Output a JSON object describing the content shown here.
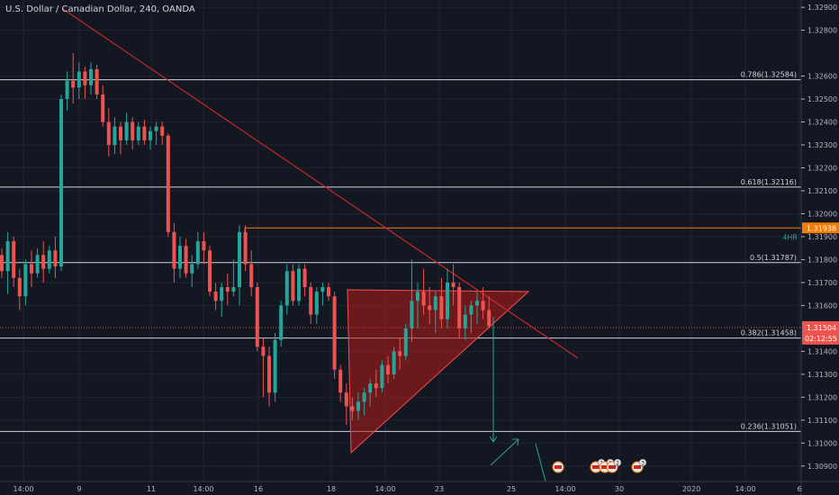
{
  "header": {
    "title": "U.S. Dollar / Canadian Dollar, 240, OANDA"
  },
  "colors": {
    "background": "#131722",
    "grid": "#1f2433",
    "up": "#26a69a",
    "down": "#ef5350",
    "fib_line": "#d1d4dc",
    "resistance": "#f57c00",
    "trendline": "#c62828",
    "triangle_fill": "#b71c1c",
    "projection": "#26a69a",
    "axis_text": "#b2b5be"
  },
  "chart_data": {
    "type": "candlestick",
    "y_range": [
      1.3086,
      1.3292
    ],
    "price_ticks": [
      "1.32900",
      "1.32800",
      "1.32600",
      "1.32500",
      "1.32400",
      "1.32300",
      "1.32200",
      "1.32100",
      "1.32000",
      "1.31900",
      "1.31800",
      "1.31700",
      "1.31600",
      "1.31400",
      "1.31300",
      "1.31200",
      "1.31100",
      "1.31000",
      "1.30900"
    ],
    "time_ticks": [
      "14:00",
      "9",
      "11",
      "14:00",
      "16",
      "18",
      "14:00",
      "23",
      "25",
      "14:00",
      "30",
      "2020",
      "14:00",
      "6"
    ],
    "horizontal_levels": [
      {
        "label": "0.786(1.32584)",
        "value": 1.32584,
        "kind": "fib"
      },
      {
        "label": "0.618(1.32116)",
        "value": 1.32116,
        "kind": "fib"
      },
      {
        "label": "0.5(1.31787)",
        "value": 1.31787,
        "kind": "fib"
      },
      {
        "label": "0.382(1.31458)",
        "value": 1.31458,
        "kind": "fib"
      },
      {
        "label": "0.236(1.31051)",
        "value": 1.31051,
        "kind": "fib"
      }
    ],
    "resistance": {
      "value": 1.31938,
      "price_label": "1.31938",
      "note": "4HR"
    },
    "last_price": {
      "value": 1.31504,
      "price_label": "1.31504",
      "countdown": "02:12:55"
    },
    "candles": [
      [
        1.3182,
        1.3185,
        1.3172,
        1.3175
      ],
      [
        1.3175,
        1.3192,
        1.3165,
        1.3188
      ],
      [
        1.3188,
        1.319,
        1.3168,
        1.3172
      ],
      [
        1.3172,
        1.3176,
        1.3158,
        1.3164
      ],
      [
        1.3164,
        1.318,
        1.316,
        1.3178
      ],
      [
        1.3178,
        1.3184,
        1.3168,
        1.3174
      ],
      [
        1.3174,
        1.3185,
        1.3172,
        1.3182
      ],
      [
        1.3182,
        1.3188,
        1.317,
        1.3176
      ],
      [
        1.3176,
        1.3186,
        1.3174,
        1.3184
      ],
      [
        1.3184,
        1.319,
        1.3172,
        1.3177
      ],
      [
        1.3177,
        1.3252,
        1.3175,
        1.325
      ],
      [
        1.325,
        1.3262,
        1.3245,
        1.3258
      ],
      [
        1.3258,
        1.327,
        1.3248,
        1.3255
      ],
      [
        1.3255,
        1.3266,
        1.325,
        1.3262
      ],
      [
        1.3262,
        1.3264,
        1.325,
        1.3256
      ],
      [
        1.3256,
        1.3266,
        1.3252,
        1.3263
      ],
      [
        1.3263,
        1.3265,
        1.325,
        1.3252
      ],
      [
        1.3252,
        1.3256,
        1.3238,
        1.324
      ],
      [
        1.324,
        1.3246,
        1.3225,
        1.323
      ],
      [
        1.323,
        1.3242,
        1.3226,
        1.3238
      ],
      [
        1.3238,
        1.324,
        1.3226,
        1.3232
      ],
      [
        1.3232,
        1.3244,
        1.323,
        1.324
      ],
      [
        1.324,
        1.3242,
        1.3228,
        1.3232
      ],
      [
        1.3232,
        1.324,
        1.323,
        1.3238
      ],
      [
        1.3238,
        1.3241,
        1.323,
        1.3232
      ],
      [
        1.3232,
        1.3238,
        1.3228,
        1.3236
      ],
      [
        1.3236,
        1.324,
        1.323,
        1.3238
      ],
      [
        1.3238,
        1.324,
        1.323,
        1.3234
      ],
      [
        1.3234,
        1.3235,
        1.319,
        1.3192
      ],
      [
        1.3192,
        1.3196,
        1.317,
        1.3176
      ],
      [
        1.3176,
        1.319,
        1.3172,
        1.3186
      ],
      [
        1.3186,
        1.3189,
        1.3172,
        1.3174
      ],
      [
        1.3174,
        1.3182,
        1.3168,
        1.3178
      ],
      [
        1.3178,
        1.3192,
        1.3176,
        1.3188
      ],
      [
        1.3188,
        1.3192,
        1.3178,
        1.3184
      ],
      [
        1.3184,
        1.3186,
        1.3164,
        1.3166
      ],
      [
        1.3166,
        1.317,
        1.3158,
        1.3162
      ],
      [
        1.3162,
        1.317,
        1.3155,
        1.3168
      ],
      [
        1.3168,
        1.3174,
        1.316,
        1.3166
      ],
      [
        1.3166,
        1.318,
        1.3164,
        1.3168
      ],
      [
        1.3168,
        1.3195,
        1.316,
        1.3192
      ],
      [
        1.3192,
        1.3195,
        1.3175,
        1.3178
      ],
      [
        1.3178,
        1.3184,
        1.3164,
        1.3168
      ],
      [
        1.3168,
        1.317,
        1.314,
        1.3142
      ],
      [
        1.3142,
        1.3146,
        1.312,
        1.3138
      ],
      [
        1.3138,
        1.3142,
        1.3116,
        1.3122
      ],
      [
        1.3122,
        1.3148,
        1.3118,
        1.3145
      ],
      [
        1.3145,
        1.3162,
        1.3142,
        1.316
      ],
      [
        1.316,
        1.3178,
        1.3156,
        1.3175
      ],
      [
        1.3175,
        1.3178,
        1.316,
        1.3162
      ],
      [
        1.3162,
        1.3178,
        1.316,
        1.3176
      ],
      [
        1.3176,
        1.3178,
        1.3164,
        1.3168
      ],
      [
        1.3168,
        1.317,
        1.3152,
        1.3156
      ],
      [
        1.3156,
        1.3168,
        1.3152,
        1.3166
      ],
      [
        1.3166,
        1.317,
        1.316,
        1.3168
      ],
      [
        1.3168,
        1.317,
        1.3162,
        1.3164
      ],
      [
        1.3164,
        1.3166,
        1.3128,
        1.3132
      ],
      [
        1.3132,
        1.3134,
        1.3118,
        1.3122
      ],
      [
        1.3122,
        1.3126,
        1.3108,
        1.3116
      ],
      [
        1.3116,
        1.312,
        1.311,
        1.3114
      ],
      [
        1.3114,
        1.3122,
        1.311,
        1.3118
      ],
      [
        1.3118,
        1.3124,
        1.3112,
        1.3122
      ],
      [
        1.3122,
        1.3128,
        1.3116,
        1.3126
      ],
      [
        1.3126,
        1.3132,
        1.312,
        1.3124
      ],
      [
        1.3124,
        1.3136,
        1.3122,
        1.3134
      ],
      [
        1.3134,
        1.3138,
        1.3126,
        1.313
      ],
      [
        1.313,
        1.3142,
        1.3128,
        1.314
      ],
      [
        1.314,
        1.3146,
        1.3132,
        1.3138
      ],
      [
        1.3138,
        1.3152,
        1.3136,
        1.315
      ],
      [
        1.315,
        1.318,
        1.3144,
        1.3162
      ],
      [
        1.3162,
        1.317,
        1.315,
        1.3166
      ],
      [
        1.3166,
        1.3176,
        1.3156,
        1.316
      ],
      [
        1.316,
        1.3168,
        1.3152,
        1.3158
      ],
      [
        1.3158,
        1.3166,
        1.3148,
        1.3164
      ],
      [
        1.3164,
        1.3172,
        1.315,
        1.3154
      ],
      [
        1.3154,
        1.3176,
        1.315,
        1.317
      ],
      [
        1.317,
        1.3178,
        1.316,
        1.3168
      ],
      [
        1.3168,
        1.317,
        1.3146,
        1.315
      ],
      [
        1.315,
        1.316,
        1.3145,
        1.3156
      ],
      [
        1.3156,
        1.3162,
        1.3148,
        1.316
      ],
      [
        1.316,
        1.3166,
        1.3152,
        1.3162
      ],
      [
        1.3162,
        1.3168,
        1.3154,
        1.3158
      ],
      [
        1.3158,
        1.3164,
        1.315,
        1.3151
      ]
    ]
  }
}
